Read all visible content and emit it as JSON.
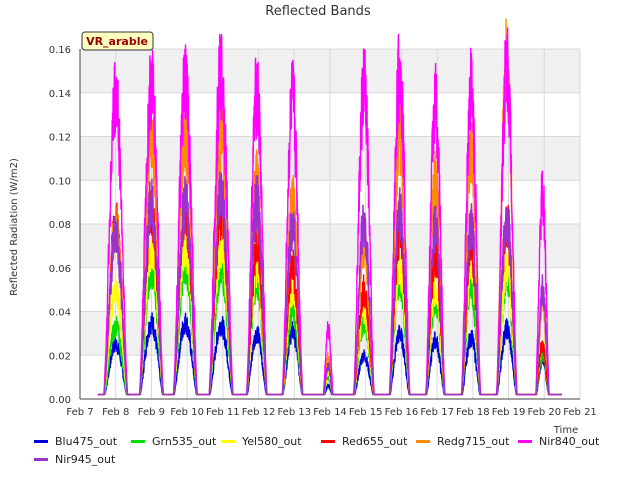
{
  "chart_data": {
    "type": "line",
    "title": "Reflected Bands",
    "ylabel": "Reflected Radiation (W/m2)",
    "xlabel": "Time",
    "ylim": [
      0,
      0.16
    ],
    "xlim": [
      7,
      21
    ],
    "x_tick_values": [
      7,
      8,
      9,
      10,
      11,
      12,
      13,
      14,
      15,
      16,
      17,
      18,
      19,
      20,
      21
    ],
    "x_tick_labels": [
      "Feb 7",
      "Feb 8",
      "Feb 9",
      "Feb 10",
      "Feb 11",
      "Feb 12",
      "Feb 13",
      "Feb 14",
      "Feb 15",
      "Feb 16",
      "Feb 17",
      "Feb 18",
      "Feb 19",
      "Feb 20",
      "Feb 21"
    ],
    "y_ticks": [
      "0.00",
      "0.02",
      "0.04",
      "0.06",
      "0.08",
      "0.10",
      "0.12",
      "0.14",
      "0.16"
    ],
    "y_tick_values": [
      0,
      0.02,
      0.04,
      0.06,
      0.08,
      0.1,
      0.12,
      0.14,
      0.16
    ],
    "annotation": "VR_arable",
    "legend_position": "bottom",
    "grid": true,
    "day_centers": [
      8.0,
      9.0,
      9.95,
      10.95,
      11.95,
      12.95,
      13.95,
      14.95,
      15.95,
      16.95,
      17.95,
      18.95,
      19.95
    ],
    "day_widths": [
      0.35,
      0.35,
      0.35,
      0.35,
      0.3,
      0.3,
      0.15,
      0.3,
      0.3,
      0.28,
      0.28,
      0.3,
      0.2
    ],
    "x_start": 7.5,
    "x_end": 20.5,
    "baseline": 0.002,
    "series": [
      {
        "name": "Blu475_out",
        "color": "#0000dd",
        "peaks": [
          0.025,
          0.035,
          0.035,
          0.034,
          0.03,
          0.031,
          0.006,
          0.02,
          0.03,
          0.027,
          0.028,
          0.032,
          0.018
        ]
      },
      {
        "name": "Grn535_out",
        "color": "#00dd00",
        "peaks": [
          0.033,
          0.06,
          0.06,
          0.06,
          0.054,
          0.04,
          0.01,
          0.035,
          0.055,
          0.046,
          0.05,
          0.056,
          0.02
        ]
      },
      {
        "name": "Yel580_out",
        "color": "#ffff00",
        "peaks": [
          0.05,
          0.068,
          0.07,
          0.07,
          0.06,
          0.05,
          0.012,
          0.04,
          0.06,
          0.05,
          0.06,
          0.06,
          0.025
        ]
      },
      {
        "name": "Red655_out",
        "color": "#ff0000",
        "peaks": [
          0.08,
          0.084,
          0.085,
          0.085,
          0.07,
          0.06,
          0.015,
          0.05,
          0.075,
          0.065,
          0.07,
          0.08,
          0.025
        ]
      },
      {
        "name": "Redg715_out",
        "color": "#ff8c00",
        "peaks": [
          0.08,
          0.12,
          0.12,
          0.118,
          0.1,
          0.09,
          0.02,
          0.07,
          0.12,
          0.1,
          0.115,
          0.153,
          0.045
        ]
      },
      {
        "name": "Nir840_out",
        "color": "#ff00ff",
        "peaks": [
          0.138,
          0.143,
          0.143,
          0.148,
          0.14,
          0.137,
          0.033,
          0.143,
          0.15,
          0.135,
          0.142,
          0.152,
          0.093
        ]
      },
      {
        "name": "Nir945_out",
        "color": "#9933cc",
        "peaks": [
          0.075,
          0.089,
          0.089,
          0.092,
          0.09,
          0.08,
          0.015,
          0.08,
          0.085,
          0.078,
          0.08,
          0.083,
          0.05
        ]
      }
    ]
  }
}
